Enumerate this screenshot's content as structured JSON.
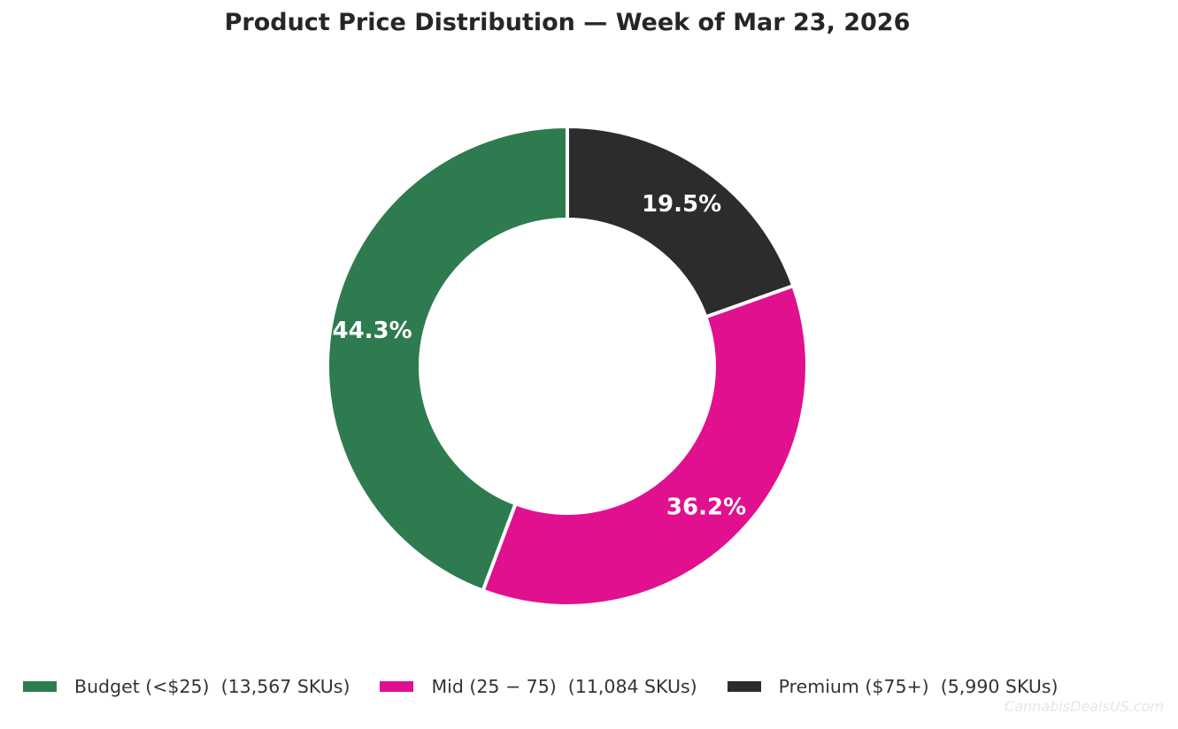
{
  "chart_data": {
    "type": "pie",
    "style": "donut",
    "title": "Product Price Distribution — Week of Mar 23, 2026",
    "slices": [
      {
        "label": "Budget (<$25)",
        "count": 13567,
        "count_label": "(13,567 SKUs)",
        "percent": 44.3,
        "percent_label": "44.3%",
        "color": "#2e7b4f"
      },
      {
        "label": "Mid (25 − 75)",
        "count": 11084,
        "count_label": "(11,084 SKUs)",
        "percent": 36.2,
        "percent_label": "36.2%",
        "color": "#e0108f"
      },
      {
        "label": "Premium ($75+)",
        "count": 5990,
        "count_label": "(5,990 SKUs)",
        "percent": 19.5,
        "percent_label": "19.5%",
        "color": "#2c2c2c"
      }
    ],
    "legend_position": "bottom"
  },
  "watermark": "CannabisDealsUS.com"
}
